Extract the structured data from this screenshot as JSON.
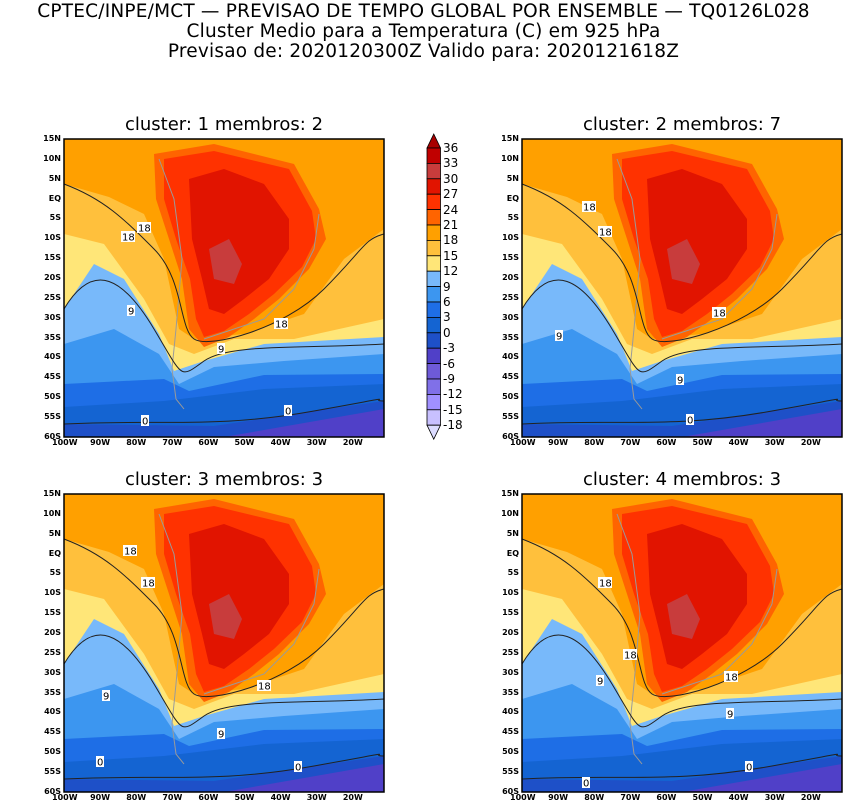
{
  "header": {
    "line1": "CPTEC/INPE/MCT — PREVISAO DE TEMPO GLOBAL POR ENSEMBLE — TQ0126L028",
    "line2": "Cluster Medio para a Temperatura (C) em 925 hPa",
    "line3": "Previsao de: 2020120300Z   Valido para: 2020121618Z"
  },
  "lat_ticks": [
    "15N",
    "10N",
    "5N",
    "EQ",
    "5S",
    "10S",
    "15S",
    "20S",
    "25S",
    "30S",
    "35S",
    "40S",
    "45S",
    "50S",
    "55S",
    "60S"
  ],
  "lon_ticks": [
    "100W",
    "90W",
    "80W",
    "70W",
    "60W",
    "50W",
    "40W",
    "30W",
    "20W"
  ],
  "panels": [
    {
      "title": "cluster: 1   membros: 2",
      "contour_labels": [
        "18",
        "18",
        "9",
        "18",
        "9",
        "0",
        "0"
      ]
    },
    {
      "title": "cluster: 2   membros: 7",
      "contour_labels": [
        "18",
        "18",
        "18",
        "9",
        "9",
        "0"
      ]
    },
    {
      "title": "cluster: 3   membros: 3",
      "contour_labels": [
        "18",
        "18",
        "18",
        "9",
        "9",
        "0",
        "0"
      ]
    },
    {
      "title": "cluster: 4   membros: 3",
      "contour_labels": [
        "18",
        "18",
        "18",
        "9",
        "9",
        "0",
        "0"
      ]
    }
  ],
  "colorbar": {
    "labels": [
      "36",
      "33",
      "30",
      "27",
      "24",
      "21",
      "18",
      "15",
      "12",
      "9",
      "6",
      "3",
      "0",
      "-3",
      "-6",
      "-9",
      "-12",
      "-15",
      "-18"
    ],
    "colors": [
      "#a80000",
      "#c00000",
      "#c83c3c",
      "#e11400",
      "#ff3200",
      "#ff6400",
      "#ffa000",
      "#ffc03c",
      "#ffe678",
      "#78b9fa",
      "#3c96f0",
      "#1e6ee6",
      "#1464d2",
      "#1e50c8",
      "#5040c8",
      "#6e5ad8",
      "#8070e8",
      "#a090ff",
      "#c8c0ff",
      "#dcdcff"
    ]
  }
}
